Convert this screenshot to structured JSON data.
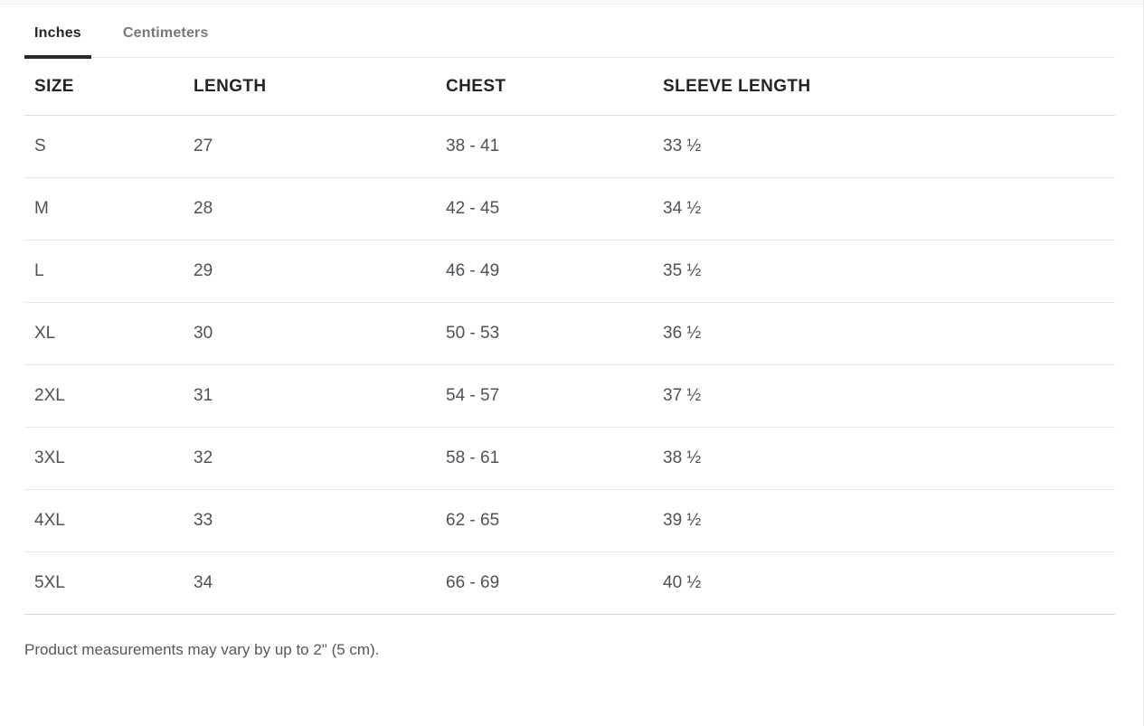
{
  "tabs": [
    {
      "label": "Inches",
      "active": true
    },
    {
      "label": "Centimeters",
      "active": false
    }
  ],
  "table": {
    "columns": [
      "SIZE",
      "LENGTH",
      "CHEST",
      "SLEEVE LENGTH"
    ],
    "column_keys": [
      "size",
      "length",
      "chest",
      "sleeve-length"
    ],
    "rows": [
      [
        "S",
        "27",
        "38 - 41",
        "33 ½"
      ],
      [
        "M",
        "28",
        "42 - 45",
        "34 ½"
      ],
      [
        "L",
        "29",
        "46 - 49",
        "35 ½"
      ],
      [
        "XL",
        "30",
        "50 - 53",
        "36 ½"
      ],
      [
        "2XL",
        "31",
        "54 - 57",
        "37 ½"
      ],
      [
        "3XL",
        "32",
        "58 - 61",
        "38 ½"
      ],
      [
        "4XL",
        "33",
        "62 - 65",
        "39 ½"
      ],
      [
        "5XL",
        "34",
        "66 - 69",
        "40 ½"
      ]
    ]
  },
  "footnote": "Product measurements may vary by up to 2\" (5 cm).",
  "colors": {
    "active_tab_text": "#232527",
    "inactive_tab_text": "#75787b",
    "active_tab_underline": "#2b2b2b",
    "header_text": "#222427",
    "cell_text": "#4d5257",
    "row_divider": "#e7e7e7",
    "header_divider": "#dcdcdc",
    "footer_divider": "#d9d9d9",
    "background": "#ffffff"
  }
}
